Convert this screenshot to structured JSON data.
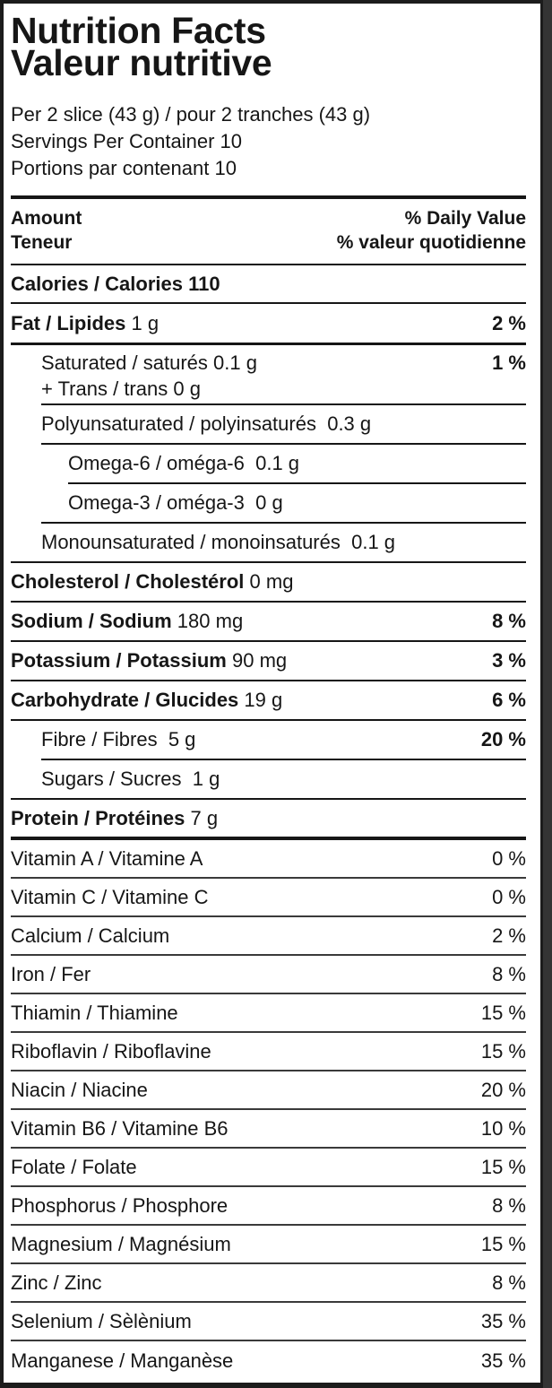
{
  "title": {
    "en": "Nutrition Facts",
    "fr": "Valeur nutritive"
  },
  "serving": {
    "per": "Per 2 slice (43 g) / pour 2 tranches (43 g)",
    "servings_en": "Servings Per Container 10",
    "servings_fr": "Portions par contenant 10"
  },
  "header": {
    "amount": "Amount",
    "teneur": "Teneur",
    "dv_en": "% Daily Value",
    "dv_fr": "% valeur quotidienne"
  },
  "calories": "Calories / Calories 110",
  "fat": {
    "label": "Fat / Lipides",
    "amount": "1 g",
    "dv": "2 %"
  },
  "saturated": {
    "label": "Saturated / saturés 0.1 g",
    "trans": "+ Trans / trans 0 g",
    "dv": "1 %"
  },
  "nutrients": [
    {
      "label": "Polyunsaturated / polyinsaturés",
      "amount": "0.3 g",
      "dv": "",
      "level": 1,
      "bold": false
    },
    {
      "label": "Omega-6 / oméga-6",
      "amount": "0.1 g",
      "dv": "",
      "level": 2,
      "bold": false
    },
    {
      "label": "Omega-3 / oméga-3",
      "amount": "0 g",
      "dv": "",
      "level": 2,
      "bold": false
    },
    {
      "label": "Monounsaturated / monoinsaturés",
      "amount": "0.1 g",
      "dv": "",
      "level": 1,
      "bold": false
    },
    {
      "label": "Cholesterol / Cholestérol",
      "amount": "0 mg",
      "dv": "",
      "level": 0,
      "bold": true
    },
    {
      "label": "Sodium / Sodium",
      "amount": "180 mg",
      "dv": "8 %",
      "level": 0,
      "bold": true
    },
    {
      "label": "Potassium / Potassium",
      "amount": "90 mg",
      "dv": "3 %",
      "level": 0,
      "bold": true
    },
    {
      "label": "Carbohydrate / Glucides",
      "amount": "19 g",
      "dv": "6 %",
      "level": 0,
      "bold": true
    },
    {
      "label": "Fibre / Fibres",
      "amount": "5 g",
      "dv": "20 %",
      "level": 1,
      "bold": false
    },
    {
      "label": "Sugars / Sucres",
      "amount": "1 g",
      "dv": "",
      "level": 1,
      "bold": false
    },
    {
      "label": "Protein / Protéines",
      "amount": "7 g",
      "dv": "",
      "level": 0,
      "bold": true
    }
  ],
  "vitamins": [
    {
      "label": "Vitamin A / Vitamine A",
      "dv": "0 %"
    },
    {
      "label": "Vitamin C / Vitamine C",
      "dv": "0 %"
    },
    {
      "label": "Calcium / Calcium",
      "dv": "2 %"
    },
    {
      "label": "Iron / Fer",
      "dv": "8 %"
    },
    {
      "label": "Thiamin / Thiamine",
      "dv": "15 %"
    },
    {
      "label": "Riboflavin / Riboflavine",
      "dv": "15 %"
    },
    {
      "label": "Niacin / Niacine",
      "dv": "20 %"
    },
    {
      "label": "Vitamin B6 / Vitamine B6",
      "dv": "10 %"
    },
    {
      "label": "Folate / Folate",
      "dv": "15 %"
    },
    {
      "label": "Phosphorus / Phosphore",
      "dv": "8 %"
    },
    {
      "label": "Magnesium / Magnésium",
      "dv": "15 %"
    },
    {
      "label": "Zinc / Zinc",
      "dv": "8 %"
    },
    {
      "label": "Selenium / Sèlènium",
      "dv": "35 %"
    },
    {
      "label": "Manganese / Manganèse",
      "dv": "35 %"
    }
  ]
}
